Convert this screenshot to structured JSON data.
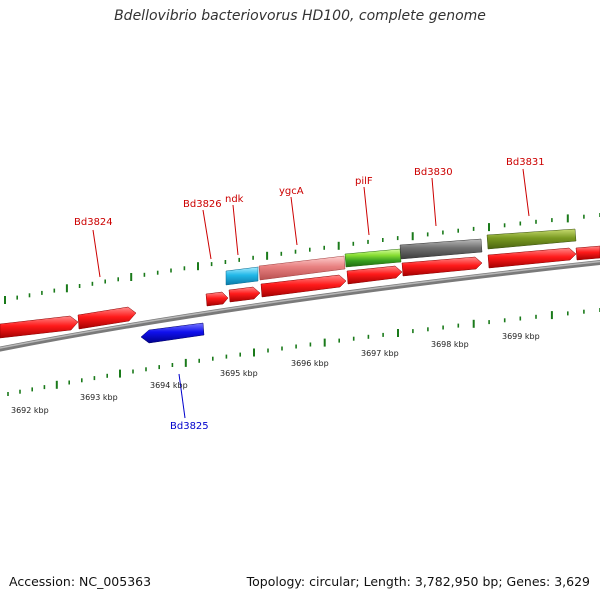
{
  "title": "Bdellovibrio bacteriovorus HD100, complete genome",
  "footer": {
    "accession": "Accession: NC_005363",
    "summary": "Topology: circular; Length: 3,782,950 bp; Genes: 3,629"
  },
  "scale_labels": [
    "3692 kbp",
    "3693 kbp",
    "3694 kbp",
    "3695 kbp",
    "3696 kbp",
    "3697 kbp",
    "3698 kbp",
    "3699 kbp"
  ],
  "gene_labels": [
    {
      "name": "Bd3824",
      "color": "#cc0000"
    },
    {
      "name": "Bd3826",
      "color": "#cc0000"
    },
    {
      "name": "ndk",
      "color": "#cc0000"
    },
    {
      "name": "ygcA",
      "color": "#cc0000"
    },
    {
      "name": "pilF",
      "color": "#cc0000"
    },
    {
      "name": "Bd3830",
      "color": "#cc0000"
    },
    {
      "name": "Bd3831",
      "color": "#cc0000"
    },
    {
      "name": "Bd3825",
      "color": "#0000cc"
    }
  ],
  "colors": {
    "forward_gene": "#ee1111",
    "reverse_gene": "#1111dd",
    "ndk_gene": "#22b8e8",
    "ygcA_gene": "#e88080",
    "pilF_gene": "#88dd33",
    "Bd3830_gene": "#707070",
    "Bd3831_gene": "#7a9a22",
    "backbone": "#808080",
    "tick": "#1a7a1a"
  }
}
